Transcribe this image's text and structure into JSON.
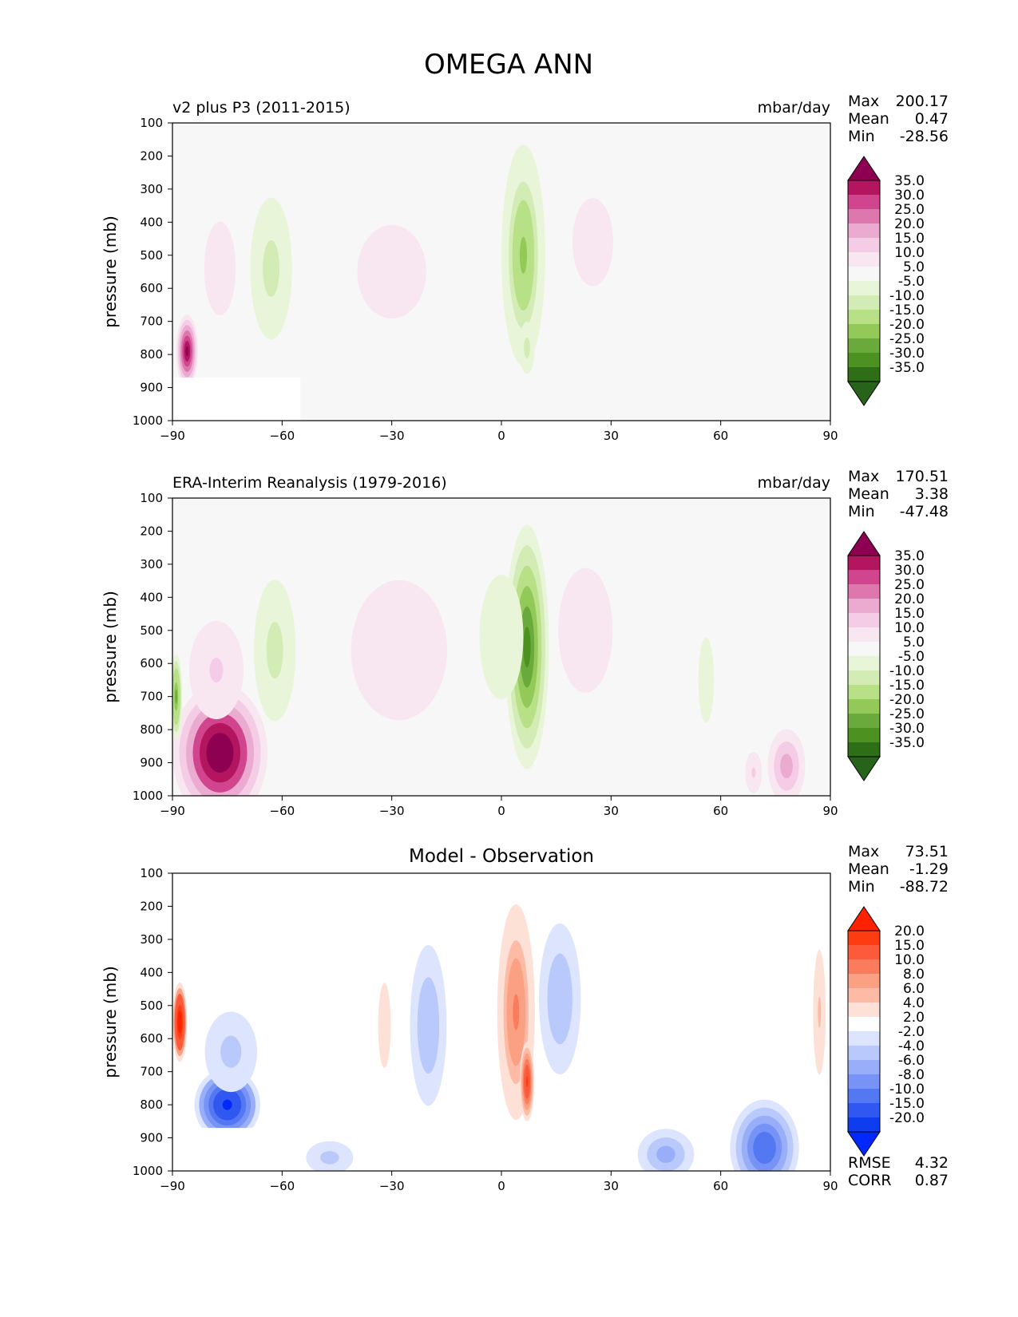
{
  "figure_title": "OMEGA ANN",
  "colors": {
    "axis": "#000000",
    "plot_bg": "#f7f7f7",
    "diff_bg": "#ffffff"
  },
  "chart_data": [
    {
      "type": "heatmap",
      "id": "model",
      "title_left": "v2 plus P3 (2011-2015)",
      "title_center": "",
      "title_right": "mbar/day",
      "ylabel": "pressure (mb)",
      "xlabel": "",
      "xlim": [
        -90,
        90
      ],
      "ylim": [
        1000,
        100
      ],
      "xticks": [
        -90,
        -60,
        -30,
        0,
        30,
        60,
        90
      ],
      "yticks": [
        100,
        200,
        300,
        400,
        500,
        600,
        700,
        800,
        900,
        1000
      ],
      "stats": [
        [
          "Max",
          "200.17"
        ],
        [
          "Mean",
          "0.47"
        ],
        [
          "Min",
          "-28.56"
        ]
      ],
      "colorbar": {
        "labels": [
          "35.0",
          "30.0",
          "25.0",
          "20.0",
          "15.0",
          "10.0",
          "5.0",
          "-5.0",
          "-10.0",
          "-15.0",
          "-20.0",
          "-25.0",
          "-30.0",
          "-35.0"
        ],
        "colors": [
          "#8e0152",
          "#b4155f",
          "#d0458d",
          "#de77ae",
          "#ebaad0",
          "#f4cce5",
          "#f8e6f0",
          "#f7f7f7",
          "#e9f5d9",
          "#d3ecb5",
          "#b8e086",
          "#93c959",
          "#6aa93c",
          "#4d9221",
          "#2e6e16",
          "#276419"
        ]
      },
      "fields": [
        {
          "lon": -30,
          "lev": 550,
          "rl": 22,
          "rp": 330,
          "value": 8
        },
        {
          "lon": 6,
          "lev": 500,
          "rl": 7,
          "rp": 390,
          "value": -22
        },
        {
          "lon": 7,
          "lev": 780,
          "rl": 3,
          "rp": 110,
          "value": -12
        },
        {
          "lon": 25,
          "lev": 460,
          "rl": 13,
          "rp": 310,
          "value": 8
        },
        {
          "lon": 5,
          "lev": 600,
          "rl": 14,
          "rp": 500,
          "value": -4
        },
        {
          "lon": -63,
          "lev": 540,
          "rl": 8,
          "rp": 300,
          "value": -14
        },
        {
          "lon": -77,
          "lev": 540,
          "rl": 10,
          "rp": 330,
          "value": 8
        },
        {
          "lon": -86,
          "lev": 790,
          "rl": 3,
          "rp": 110,
          "value": 38
        },
        {
          "lon": 56,
          "lev": 730,
          "rl": 6,
          "rp": 330,
          "value": -5
        }
      ],
      "mask": {
        "lon_max": -55,
        "lev_min": 870
      }
    },
    {
      "type": "heatmap",
      "id": "obs",
      "title_left": "ERA-Interim Reanalysis (1979-2016)",
      "title_center": "",
      "title_right": "mbar/day",
      "ylabel": "pressure (mb)",
      "xlabel": "",
      "xlim": [
        -90,
        90
      ],
      "ylim": [
        1000,
        100
      ],
      "xticks": [
        -90,
        -60,
        -30,
        0,
        30,
        60,
        90
      ],
      "yticks": [
        100,
        200,
        300,
        400,
        500,
        600,
        700,
        800,
        900,
        1000
      ],
      "stats": [
        [
          "Max",
          "170.51"
        ],
        [
          "Mean",
          "3.38"
        ],
        [
          "Min",
          "-47.48"
        ]
      ],
      "colorbar": {
        "labels": [
          "35.0",
          "30.0",
          "25.0",
          "20.0",
          "15.0",
          "10.0",
          "5.0",
          "-5.0",
          "-10.0",
          "-15.0",
          "-20.0",
          "-25.0",
          "-30.0",
          "-35.0"
        ],
        "colors": [
          "#8e0152",
          "#b4155f",
          "#d0458d",
          "#de77ae",
          "#ebaad0",
          "#f4cce5",
          "#f8e6f0",
          "#f7f7f7",
          "#e9f5d9",
          "#d3ecb5",
          "#b8e086",
          "#93c959",
          "#6aa93c",
          "#4d9221",
          "#2e6e16",
          "#276419"
        ]
      },
      "fields": [
        {
          "lon": -28,
          "lev": 560,
          "rl": 23,
          "rp": 370,
          "value": 9
        },
        {
          "lon": 7,
          "lev": 550,
          "rl": 7,
          "rp": 430,
          "value": -33
        },
        {
          "lon": 0,
          "lev": 520,
          "rl": 14,
          "rp": 440,
          "value": -8
        },
        {
          "lon": 23,
          "lev": 500,
          "rl": 13,
          "rp": 330,
          "value": 9
        },
        {
          "lon": -62,
          "lev": 560,
          "rl": 8,
          "rp": 300,
          "value": -14
        },
        {
          "lon": -77,
          "lev": 870,
          "rl": 13,
          "rp": 210,
          "value": 45
        },
        {
          "lon": -78,
          "lev": 620,
          "rl": 13,
          "rp": 260,
          "value": 10
        },
        {
          "lon": 56,
          "lev": 650,
          "rl": 5,
          "rp": 300,
          "value": -8
        },
        {
          "lon": 78,
          "lev": 910,
          "rl": 6,
          "rp": 130,
          "value": 18
        },
        {
          "lon": 69,
          "lev": 930,
          "rl": 4,
          "rp": 110,
          "value": 10
        },
        {
          "lon": -89,
          "lev": 700,
          "rl": 2,
          "rp": 150,
          "value": -28
        }
      ],
      "mask": null
    },
    {
      "type": "heatmap",
      "id": "diff",
      "title_left": "",
      "title_center": "Model - Observation",
      "title_right": "",
      "ylabel": "pressure (mb)",
      "xlabel": "",
      "xlim": [
        -90,
        90
      ],
      "ylim": [
        1000,
        100
      ],
      "xticks": [
        -90,
        -60,
        -30,
        0,
        30,
        60,
        90
      ],
      "yticks": [
        100,
        200,
        300,
        400,
        500,
        600,
        700,
        800,
        900,
        1000
      ],
      "stats": [
        [
          "Max",
          "73.51"
        ],
        [
          "Mean",
          "-1.29"
        ],
        [
          "Min",
          "-88.72"
        ]
      ],
      "bottom_stats": [
        [
          "RMSE",
          "4.32"
        ],
        [
          "CORR",
          "0.87"
        ]
      ],
      "colorbar": {
        "labels": [
          "20.0",
          "15.0",
          "10.0",
          "8.0",
          "6.0",
          "4.0",
          "2.0",
          "-2.0",
          "-4.0",
          "-6.0",
          "-8.0",
          "-10.0",
          "-15.0",
          "-20.0"
        ],
        "colors": [
          "#ff2200",
          "#ff3b12",
          "#fd5a3c",
          "#fb7c5c",
          "#fca083",
          "#fdbba6",
          "#fde0d6",
          "#ffffff",
          "#dde4fd",
          "#bac9fb",
          "#98aef8",
          "#7693f5",
          "#5478f2",
          "#3058f0",
          "#0e3df0",
          "#0028ff"
        ]
      },
      "fields": [
        {
          "lon": 4,
          "lev": 520,
          "rl": 6,
          "rp": 380,
          "value": 9
        },
        {
          "lon": 7,
          "lev": 730,
          "rl": 2,
          "rp": 120,
          "value": 16
        },
        {
          "lon": -20,
          "lev": 560,
          "rl": 7,
          "rp": 340,
          "value": -6
        },
        {
          "lon": 16,
          "lev": 480,
          "rl": 8,
          "rp": 320,
          "value": -6
        },
        {
          "lon": -32,
          "lev": 560,
          "rl": 4,
          "rp": 300,
          "value": 3
        },
        {
          "lon": -75,
          "lev": 800,
          "rl": 9,
          "rp": 110,
          "value": -22
        },
        {
          "lon": -74,
          "lev": 640,
          "rl": 10,
          "rp": 170,
          "value": -5
        },
        {
          "lon": -88,
          "lev": 550,
          "rl": 2,
          "rp": 120,
          "value": 25
        },
        {
          "lon": 72,
          "lev": 930,
          "rl": 11,
          "rp": 170,
          "value": -14
        },
        {
          "lon": 45,
          "lev": 950,
          "rl": 9,
          "rp": 90,
          "value": -8
        },
        {
          "lon": 87,
          "lev": 520,
          "rl": 3,
          "rp": 330,
          "value": 4
        },
        {
          "lon": -47,
          "lev": 960,
          "rl": 9,
          "rp": 70,
          "value": -5
        }
      ],
      "mask": {
        "lon_max": -65,
        "lev_min": 870
      }
    }
  ]
}
